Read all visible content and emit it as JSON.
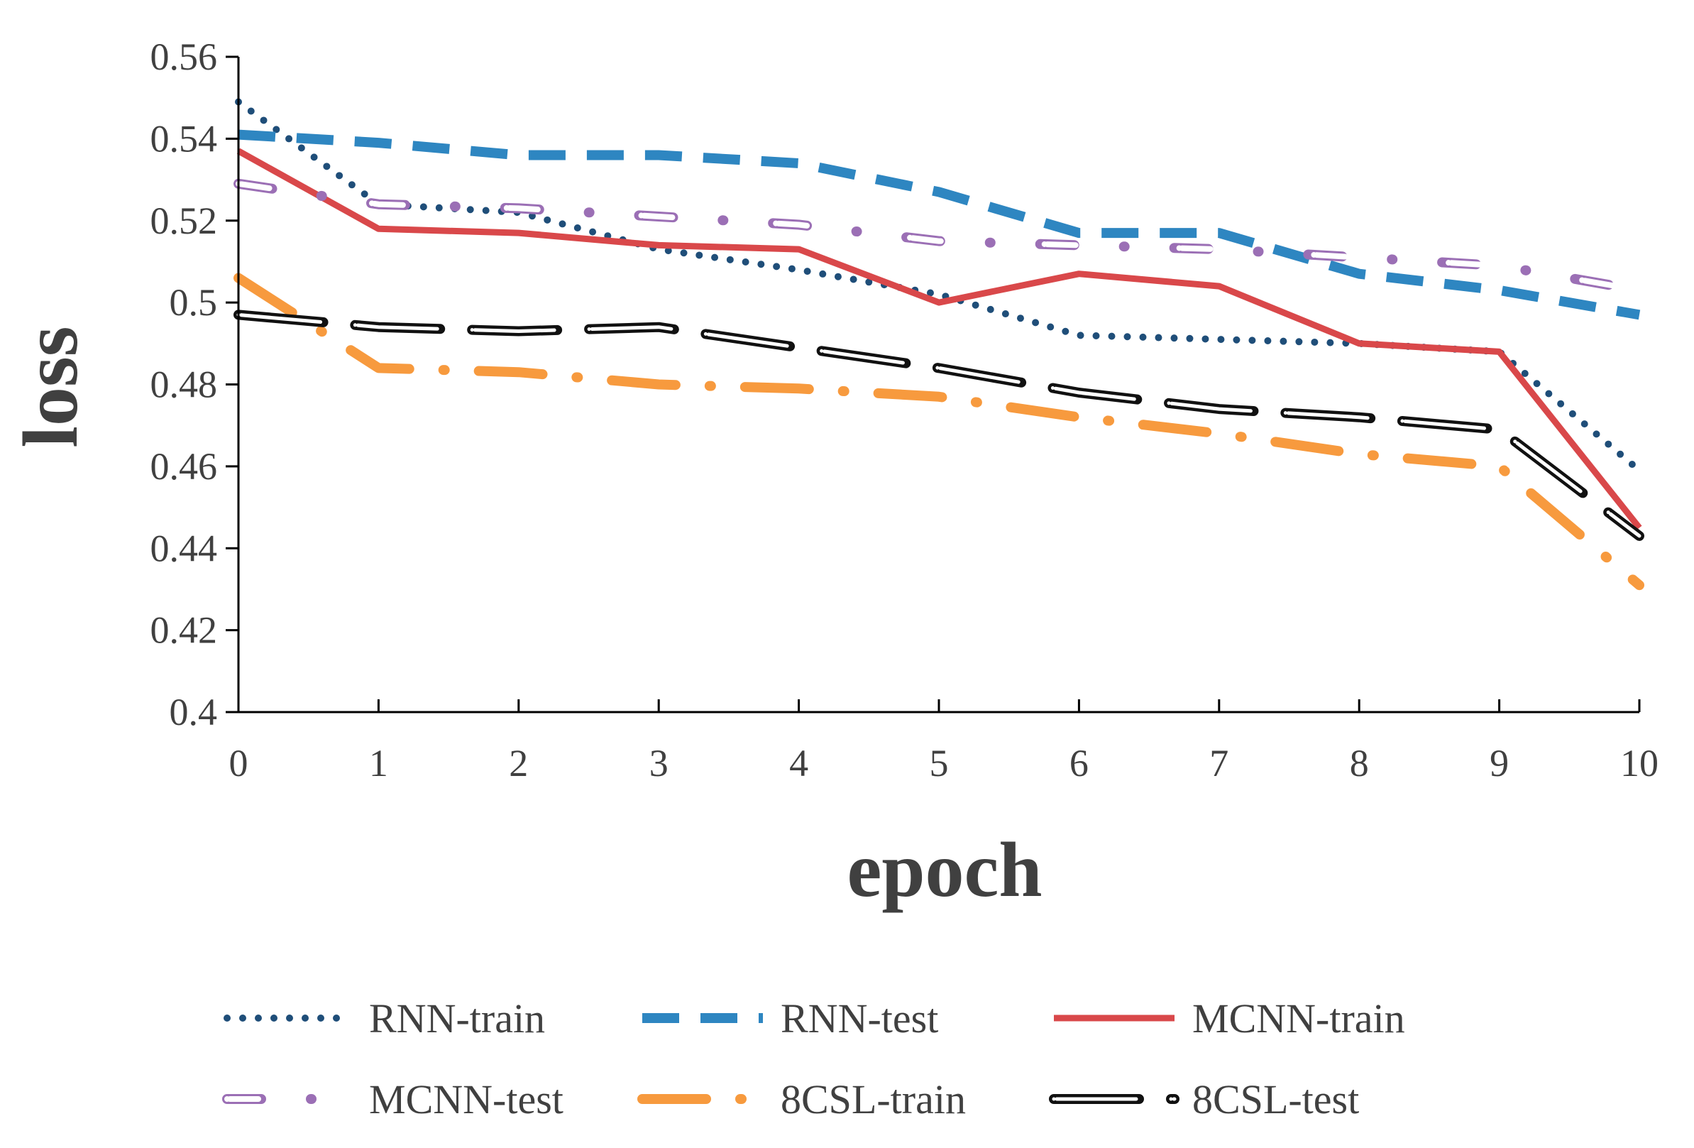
{
  "chart_data": {
    "type": "line",
    "title": "",
    "xlabel": "epoch",
    "ylabel": "loss",
    "xlim": [
      0,
      10
    ],
    "ylim": [
      0.4,
      0.56
    ],
    "x_ticks": [
      "0",
      "1",
      "2",
      "3",
      "4",
      "5",
      "6",
      "7",
      "8",
      "9",
      "10"
    ],
    "y_ticks": [
      "0.4",
      "0.42",
      "0.44",
      "0.46",
      "0.48",
      "0.5",
      "0.52",
      "0.54",
      "0.56"
    ],
    "x": [
      0,
      1,
      2,
      3,
      4,
      5,
      6,
      7,
      8,
      9,
      10
    ],
    "series": [
      {
        "name": "RNN-train",
        "color": "#1f4e79",
        "style": "dotted",
        "values": [
          0.549,
          0.524,
          0.522,
          0.513,
          0.508,
          0.502,
          0.492,
          0.491,
          0.49,
          0.488,
          0.459
        ]
      },
      {
        "name": "RNN-test",
        "color": "#2e86c1",
        "style": "dashed",
        "values": [
          0.541,
          0.539,
          0.536,
          0.536,
          0.534,
          0.527,
          0.517,
          0.517,
          0.507,
          0.503,
          0.497
        ]
      },
      {
        "name": "MCNN-train",
        "color": "#d9484a",
        "style": "solid",
        "values": [
          0.537,
          0.518,
          0.517,
          0.514,
          0.513,
          0.5,
          0.507,
          0.504,
          0.49,
          0.488,
          0.445
        ]
      },
      {
        "name": "MCNN-test",
        "color": "#9b6fb5",
        "style": "ring-dashdot",
        "values": [
          0.529,
          0.524,
          0.523,
          0.521,
          0.519,
          0.515,
          0.514,
          0.513,
          0.511,
          0.509,
          0.503
        ]
      },
      {
        "name": "8CSL-train",
        "color": "#f79a3e",
        "style": "long-dashdot",
        "values": [
          0.506,
          0.484,
          0.483,
          0.48,
          0.479,
          0.477,
          0.472,
          0.468,
          0.463,
          0.46,
          0.431
        ]
      },
      {
        "name": "8CSL-test",
        "color": "#111111",
        "style": "double-dashed",
        "values": [
          0.497,
          0.494,
          0.493,
          0.494,
          0.489,
          0.484,
          0.478,
          0.474,
          0.472,
          0.469,
          0.443
        ]
      }
    ],
    "legend_position": "bottom",
    "grid": false
  }
}
